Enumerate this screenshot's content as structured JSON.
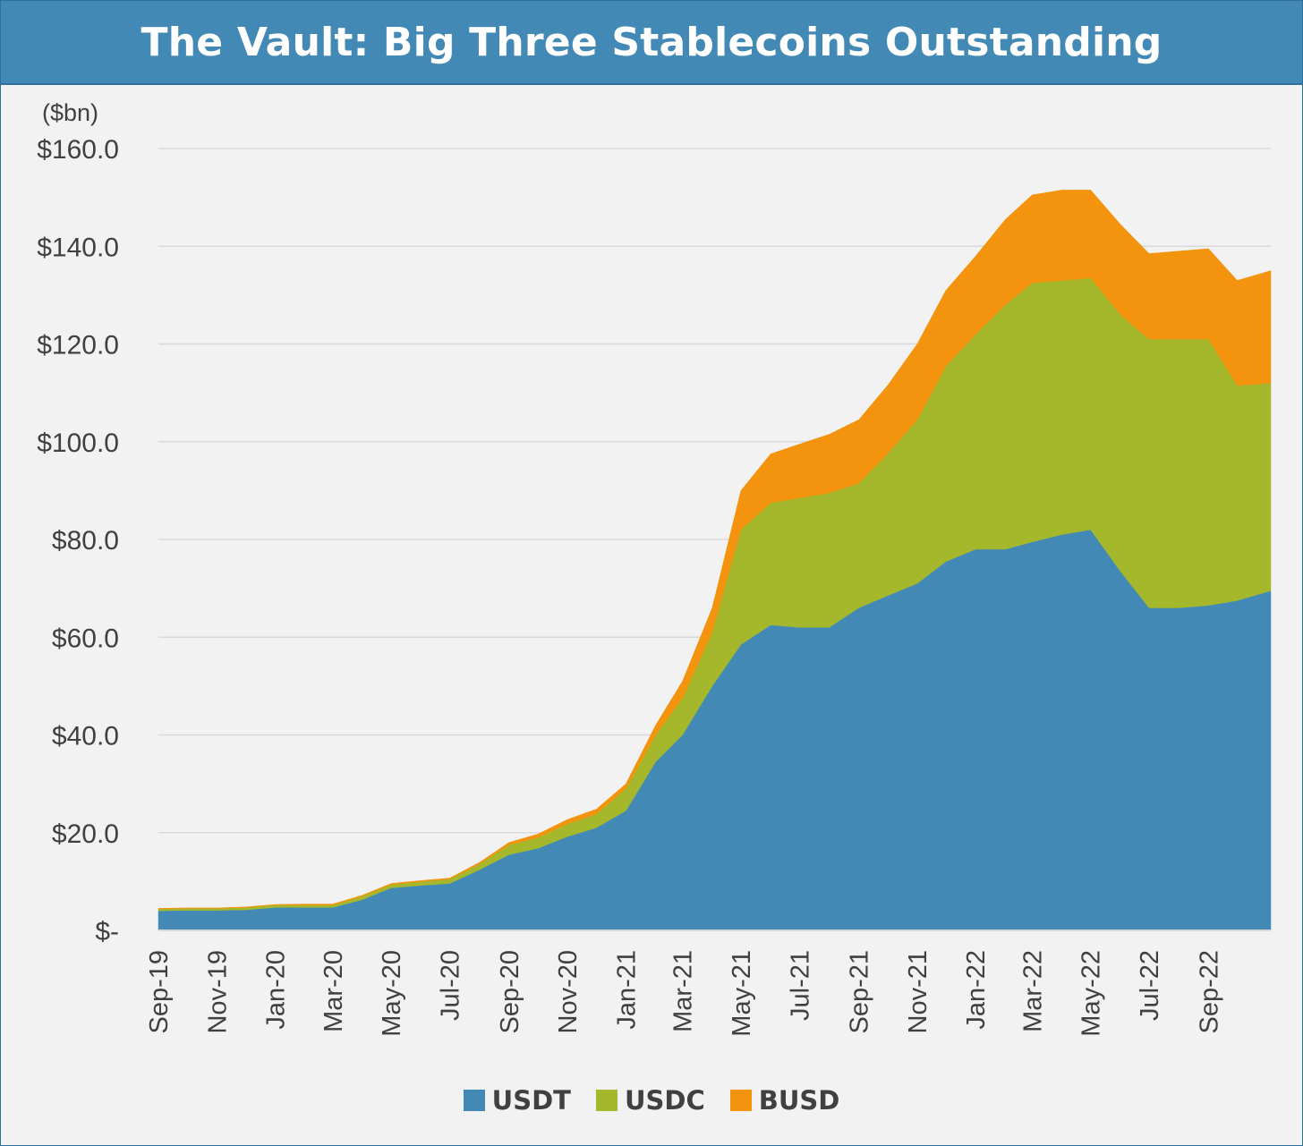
{
  "chart_data": {
    "type": "area",
    "stacked": true,
    "title": "The Vault: Big Three Stablecoins Outstanding",
    "unit_label": "($bn)",
    "ylim": [
      0,
      160
    ],
    "y_ticks": [
      {
        "value": 0,
        "label": "$-"
      },
      {
        "value": 20,
        "label": "$20.0"
      },
      {
        "value": 40,
        "label": "$40.0"
      },
      {
        "value": 60,
        "label": "$60.0"
      },
      {
        "value": 80,
        "label": "$80.0"
      },
      {
        "value": 100,
        "label": "$100.0"
      },
      {
        "value": 120,
        "label": "$120.0"
      },
      {
        "value": 140,
        "label": "$140.0"
      },
      {
        "value": 160,
        "label": "$160.0"
      }
    ],
    "x_tick_labels": [
      "Sep-19",
      "Nov-19",
      "Jan-20",
      "Mar-20",
      "May-20",
      "Jul-20",
      "Sep-20",
      "Nov-20",
      "Jan-21",
      "Mar-21",
      "May-21",
      "Jul-21",
      "Sep-21",
      "Nov-21",
      "Jan-22",
      "Mar-22",
      "May-22",
      "Jul-22",
      "Sep-22"
    ],
    "x_tick_dates": [
      "2019-09-01",
      "2019-11-01",
      "2020-01-01",
      "2020-03-01",
      "2020-05-01",
      "2020-07-01",
      "2020-09-01",
      "2020-11-01",
      "2021-01-01",
      "2021-03-01",
      "2021-05-01",
      "2021-07-01",
      "2021-09-01",
      "2021-11-01",
      "2022-01-01",
      "2022-03-01",
      "2022-05-01",
      "2022-07-01",
      "2022-09-01"
    ],
    "xlim": [
      "2019-09-01",
      "2022-11-05"
    ],
    "grid": true,
    "legend_position": "bottom",
    "dates": [
      "2019-09-01",
      "2019-10-01",
      "2019-11-01",
      "2019-12-01",
      "2020-01-01",
      "2020-02-01",
      "2020-03-01",
      "2020-04-01",
      "2020-05-01",
      "2020-06-01",
      "2020-07-01",
      "2020-08-01",
      "2020-09-01",
      "2020-10-01",
      "2020-11-01",
      "2020-12-01",
      "2021-01-01",
      "2021-02-01",
      "2021-03-01",
      "2021-04-01",
      "2021-05-01",
      "2021-06-01",
      "2021-07-01",
      "2021-08-01",
      "2021-09-01",
      "2021-10-01",
      "2021-11-01",
      "2021-12-01",
      "2022-01-01",
      "2022-02-01",
      "2022-03-01",
      "2022-04-01",
      "2022-05-01",
      "2022-06-01",
      "2022-07-01",
      "2022-08-01",
      "2022-09-01",
      "2022-10-01",
      "2022-11-05"
    ],
    "series": [
      {
        "name": "USDT",
        "color": "#4389b6",
        "values": [
          4.0,
          4.1,
          4.1,
          4.2,
          4.7,
          4.7,
          4.7,
          6.3,
          8.7,
          9.2,
          9.6,
          12.4,
          15.5,
          16.8,
          19.2,
          21.0,
          24.5,
          34.5,
          40.0,
          50.0,
          58.5,
          62.5,
          62.0,
          62.0,
          66.0,
          68.5,
          71.0,
          75.5,
          78.0,
          78.0,
          79.5,
          81.0,
          82.0,
          73.5,
          66.0,
          66.0,
          66.5,
          67.5,
          69.5
        ]
      },
      {
        "name": "USDC",
        "color": "#a5b82b",
        "values": [
          0.4,
          0.4,
          0.4,
          0.5,
          0.5,
          0.5,
          0.5,
          0.7,
          0.7,
          0.8,
          0.9,
          1.2,
          2.0,
          2.2,
          2.6,
          2.8,
          4.5,
          5.5,
          7.5,
          11.0,
          23.5,
          25.0,
          26.5,
          27.5,
          25.5,
          29.0,
          33.5,
          40.0,
          44.0,
          50.0,
          53.0,
          52.0,
          51.5,
          52.5,
          55.0,
          55.0,
          54.5,
          44.0,
          42.5
        ]
      },
      {
        "name": "BUSD",
        "color": "#f4930d",
        "values": [
          0.1,
          0.1,
          0.1,
          0.1,
          0.1,
          0.2,
          0.2,
          0.2,
          0.2,
          0.2,
          0.2,
          0.3,
          0.5,
          0.7,
          0.9,
          1.0,
          1.0,
          2.0,
          3.5,
          5.0,
          8.0,
          10.0,
          11.0,
          12.0,
          13.0,
          14.0,
          15.5,
          15.5,
          16.0,
          17.5,
          18.0,
          18.5,
          18.0,
          18.5,
          17.5,
          18.0,
          18.5,
          21.5,
          23.0
        ]
      }
    ]
  }
}
